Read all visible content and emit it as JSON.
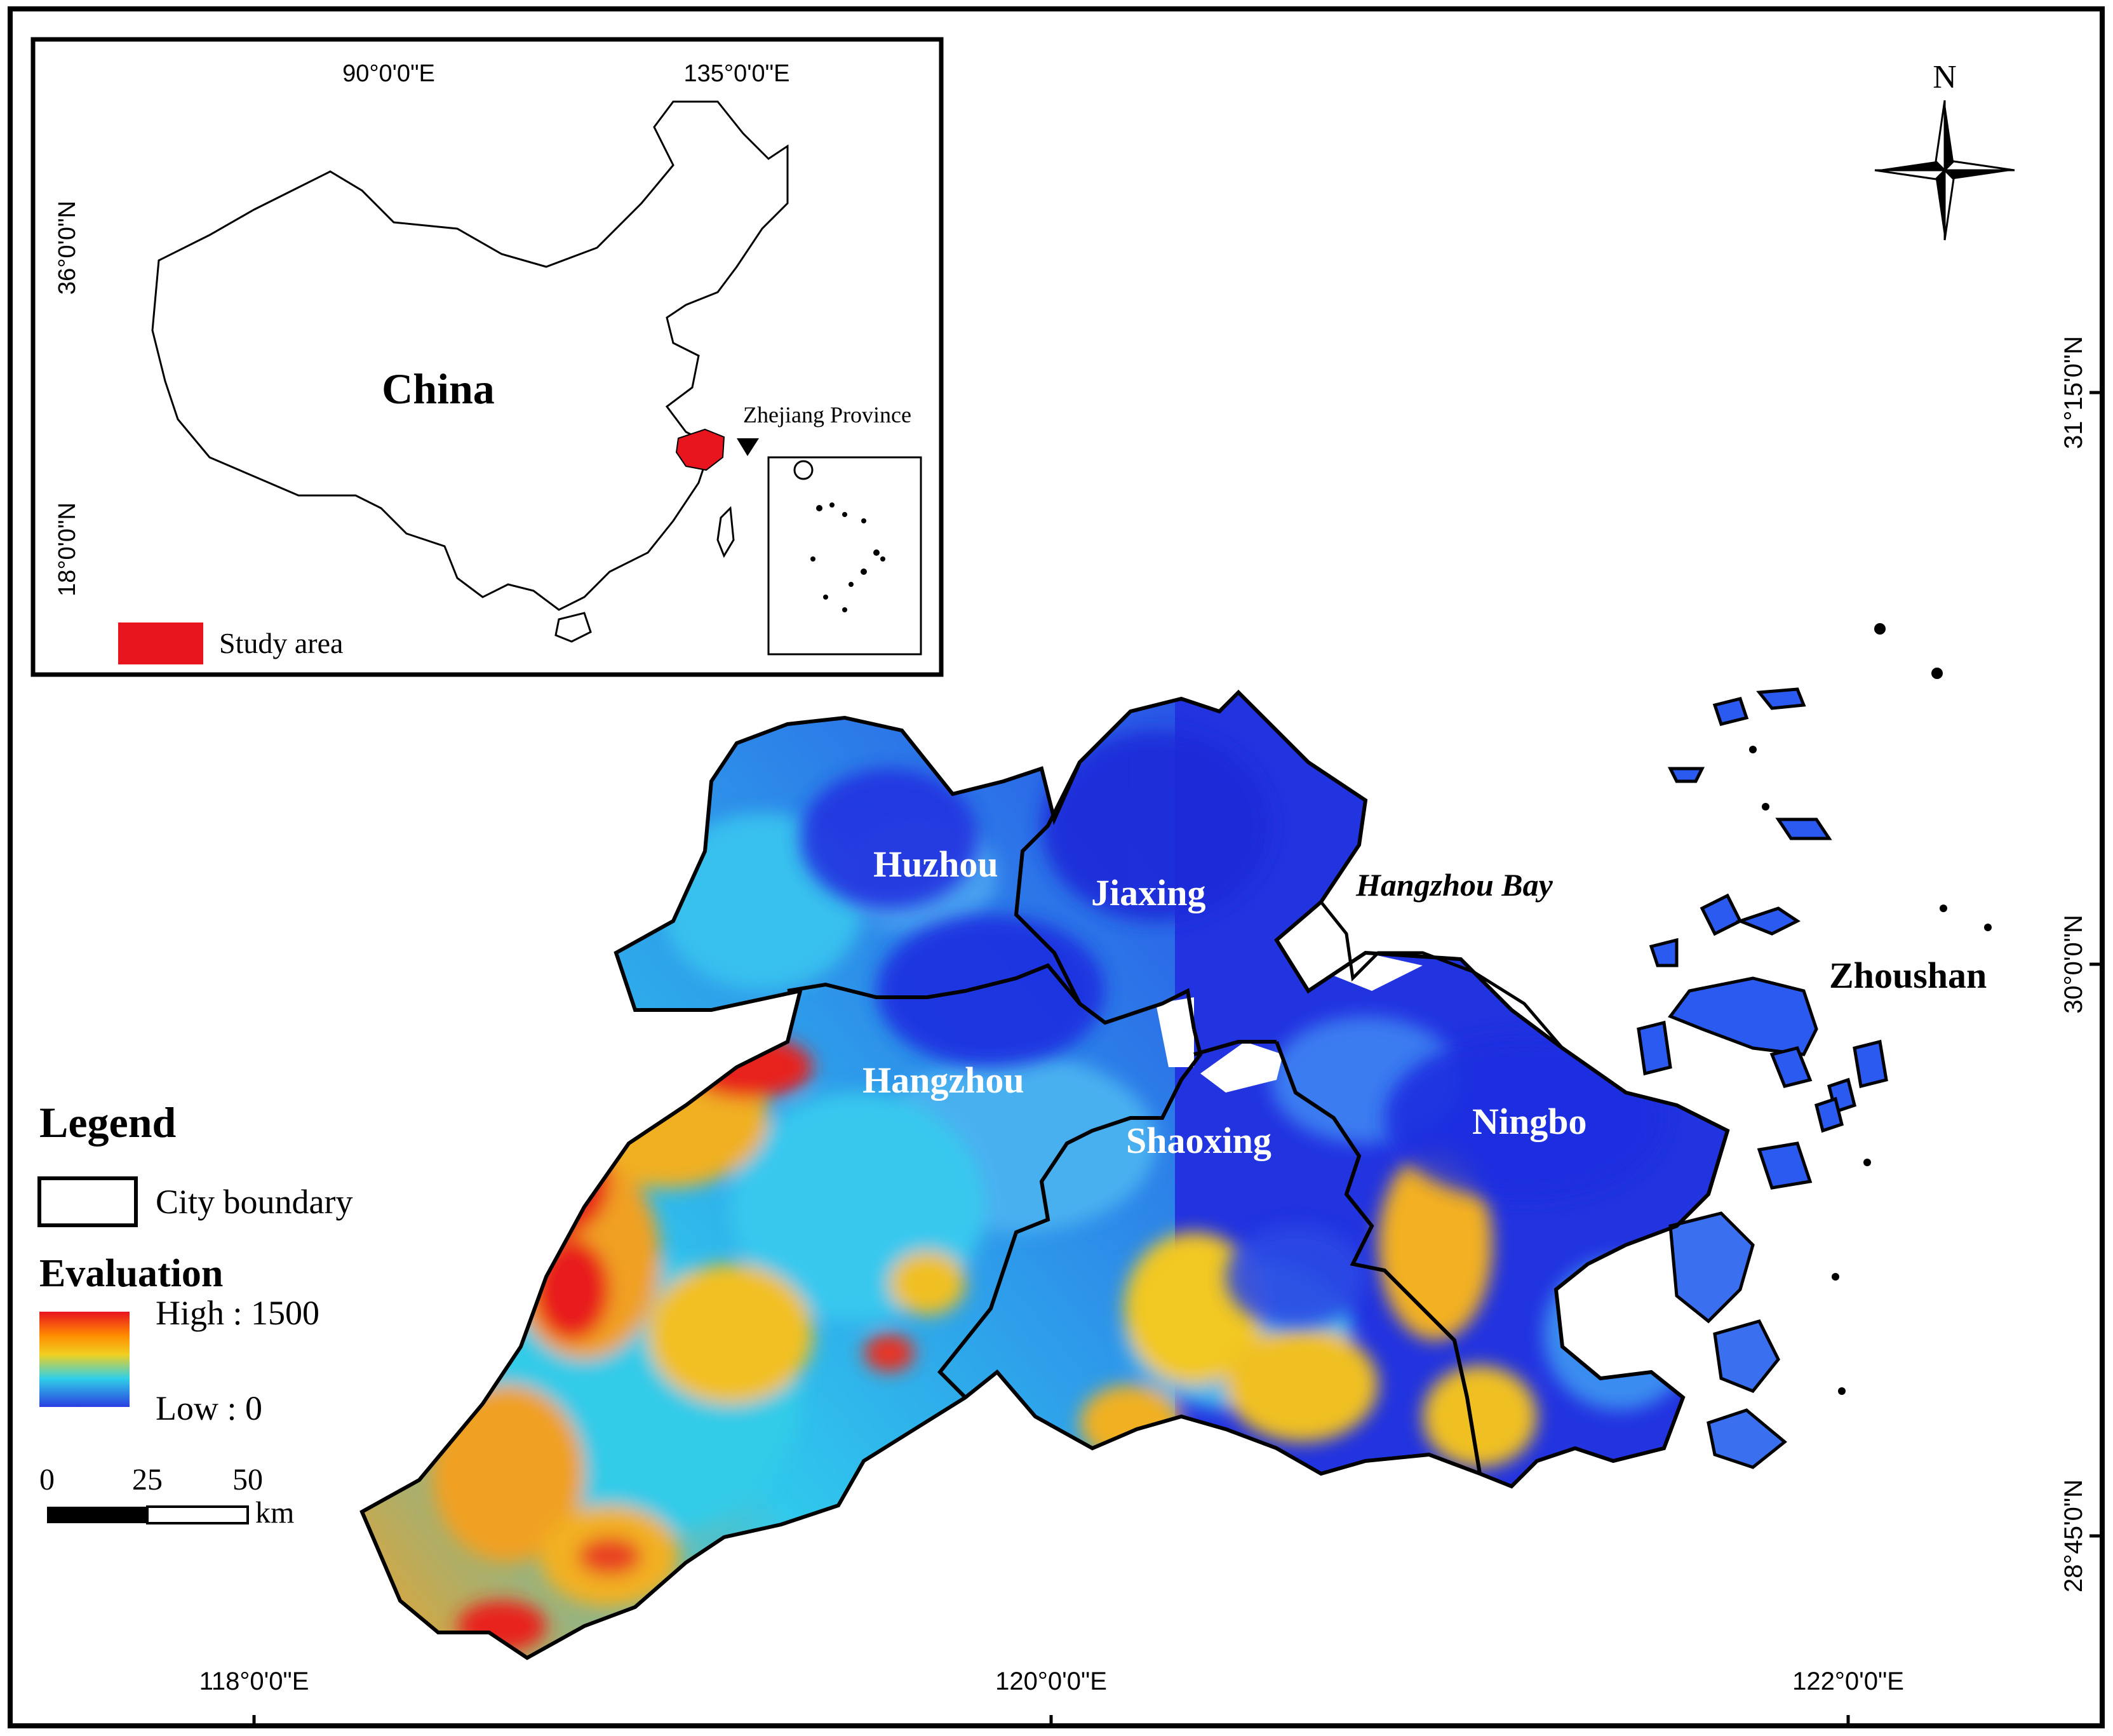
{
  "inset": {
    "country_label": "China",
    "province_label": "Zhejiang Province",
    "legend_label": "Study area",
    "lon_ticks": [
      "90°0'0\"E",
      "135°0'0\"E"
    ],
    "lat_ticks": [
      "36°0'0\"N",
      "18°0'0\"N"
    ],
    "study_area_color": "#e8141e"
  },
  "main_map": {
    "cities": [
      "Huzhou",
      "Jiaxing",
      "Hangzhou",
      "Shaoxing",
      "Ningbo",
      "Zhoushan"
    ],
    "water_label": "Hangzhou Bay",
    "lon_ticks": [
      "118°0'0\"E",
      "120°0'0\"E",
      "122°0'0\"E"
    ],
    "lat_ticks": [
      "31°15'0\"N",
      "30°0'0\"N",
      "28°45'0\"N"
    ]
  },
  "north_arrow": {
    "label": "N",
    "icon": "compass-rose-icon"
  },
  "legend": {
    "title": "Legend",
    "boundary_label": "City boundary",
    "evaluation_title": "Evaluation",
    "high_label": "High : 1500",
    "low_label": "Low : 0",
    "color_ramp": [
      "#e8141e",
      "#ff8c00",
      "#f0d020",
      "#30d0e8",
      "#2a3ee0"
    ]
  },
  "scale_bar": {
    "ticks": [
      "0",
      "25",
      "50"
    ],
    "unit": "km"
  }
}
